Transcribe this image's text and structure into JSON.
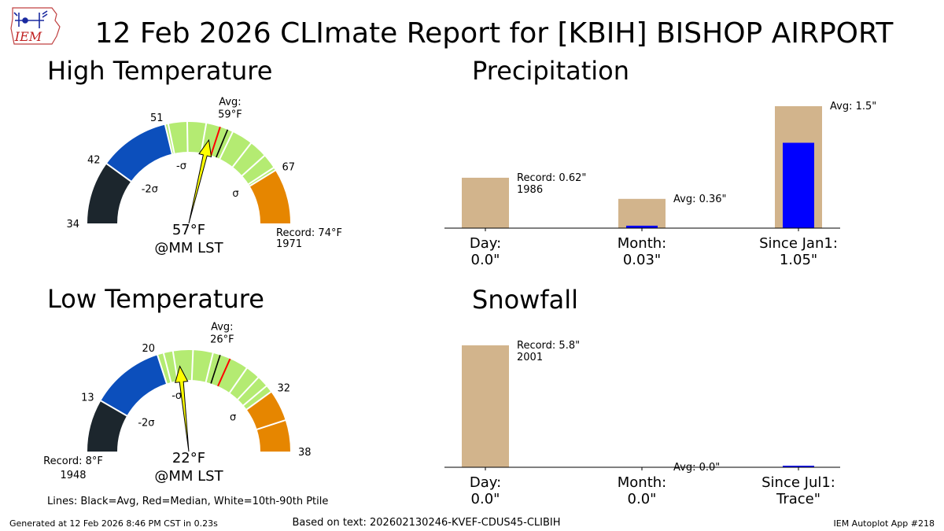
{
  "title": "12 Feb 2026 CLImate Report for [KBIH] BISHOP AIRPORT",
  "logo_text": "IEM",
  "footer": {
    "generated": "Generated at 12 Feb 2026 8:46 PM CST in 0.23s",
    "based_on": "Based on text: 202602130246-KVEF-CDUS45-CLIBIH",
    "app": "IEM Autoplot App #218"
  },
  "legend_note": "Lines: Black=Avg, Red=Median, White=10th-90th Ptile",
  "colors": {
    "dark": "#1c262d",
    "blue": "#0c4fbc",
    "green": "#b4eb72",
    "orange": "#e68600",
    "tan": "#d2b48c",
    "bar": "#0000ff",
    "needle": "#ffff00",
    "median": "#ff0000"
  },
  "chart_data": [
    {
      "type": "gauge",
      "title": "High Temperature",
      "value": 57,
      "value_label": "57°F",
      "time_label": "@MM LST",
      "avg": 59,
      "avg_label": "Avg:\n59°F",
      "median": 58,
      "record_low": 34,
      "record_high": 74,
      "record_text": "Record: 74°F\n1971",
      "record_side": "right",
      "band_edges": [
        34,
        42,
        51,
        67,
        74
      ],
      "tick_labels": [
        "34",
        "42",
        "51",
        "67"
      ],
      "sigma_labels": [
        "-2σ",
        "-σ",
        "σ"
      ],
      "percentile_lines": [
        51.4,
        53.8,
        56.2,
        59.7,
        62.4,
        64.7,
        66.6
      ]
    },
    {
      "type": "gauge",
      "title": "Low Temperature",
      "value": 22,
      "value_label": "22°F",
      "time_label": "@MM LST",
      "avg": 26,
      "avg_label": "Avg:\n26°F",
      "median": 27,
      "record_low": 8,
      "record_high": 38,
      "record_text": "Record: 8°F\n1948",
      "record_side": "left",
      "band_edges": [
        8,
        13,
        20,
        32,
        38
      ],
      "tick_labels": [
        "13",
        "20",
        "32",
        "38"
      ],
      "sigma_labels": [
        "-2σ",
        "-σ",
        "σ"
      ],
      "percentile_lines": [
        20.6,
        21.5,
        23.4,
        25.3,
        28.8,
        30.2,
        31.3,
        35.0
      ]
    },
    {
      "type": "bar",
      "title": "Precipitation",
      "categories": [
        "Day:\n0.0\"",
        "Month:\n0.03\"",
        "Since Jan1:\n1.05\""
      ],
      "values": [
        0.0,
        0.03,
        1.05
      ],
      "background": [
        0.62,
        0.36,
        1.5
      ],
      "annotations": [
        "Record: 0.62\"\n1986",
        "Avg: 0.36\"",
        "Avg: 1.5\""
      ]
    },
    {
      "type": "bar",
      "title": "Snowfall",
      "categories": [
        "Day:\n0.0\"",
        "Month:\n0.0\"",
        "Since Jul1:\nTrace\""
      ],
      "values": [
        0.0,
        0.0,
        0.0001
      ],
      "background": [
        5.8,
        0.0,
        0.0
      ],
      "annotations": [
        "Record: 5.8\"\n2001",
        "Avg: 0.0\"",
        ""
      ]
    }
  ]
}
